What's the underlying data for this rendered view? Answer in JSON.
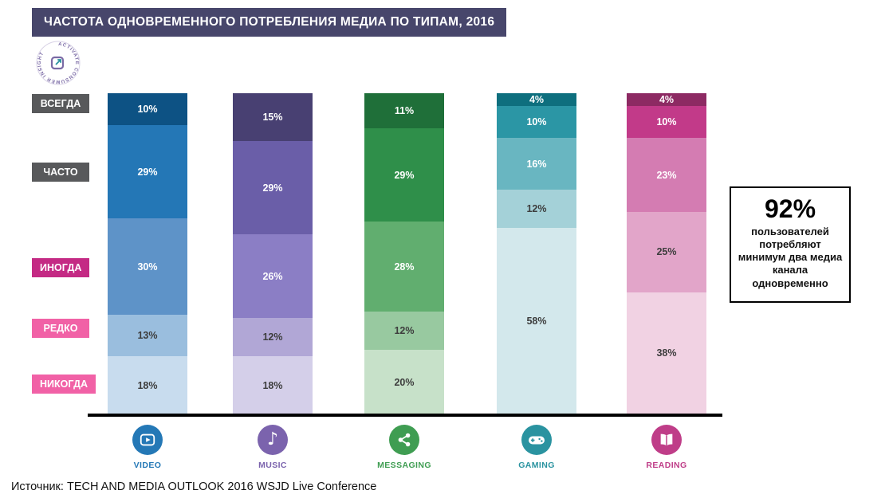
{
  "title": "ЧАСТОТА ОДНОВРЕМЕННОГО ПОТРЕБЛЕНИЯ МЕДИА ПО ТИПАМ, 2016",
  "logo": {
    "text": "ACTIVATE CONSUMER INSIGHT"
  },
  "row_labels": [
    {
      "label": "ВСЕГДА",
      "color": "#58595b"
    },
    {
      "label": "ЧАСТО",
      "color": "#58595b"
    },
    {
      "label": "ИНОГДА",
      "color": "#c42a84"
    },
    {
      "label": "РЕДКО",
      "color": "#f161a6"
    },
    {
      "label": "НИКОГДА",
      "color": "#f161a6"
    }
  ],
  "chart_data": {
    "type": "bar",
    "stacked": true,
    "unit": "%",
    "title": "ЧАСТОТА ОДНОВРЕМЕННОГО ПОТРЕБЛЕНИЯ МЕДИА ПО ТИПАМ, 2016",
    "row_labels": [
      "ВСЕГДА",
      "ЧАСТО",
      "ИНОГДА",
      "РЕДКО",
      "НИКОГДА"
    ],
    "categories": [
      "VIDEO",
      "MUSIC",
      "MESSAGING",
      "GAMING",
      "READING"
    ],
    "ylim": [
      0,
      100
    ],
    "series": [
      {
        "name": "VIDEO",
        "icon": "video-icon",
        "accent": "#2478b6",
        "values": [
          10,
          29,
          30,
          13,
          18
        ],
        "colors": [
          "#0d5284",
          "#2477b6",
          "#5e93c8",
          "#9abede",
          "#c8dcee"
        ]
      },
      {
        "name": "MUSIC",
        "icon": "music-icon",
        "accent": "#7b63ad",
        "values": [
          15,
          29,
          26,
          12,
          18
        ],
        "colors": [
          "#484072",
          "#6a5ea8",
          "#8b7ec5",
          "#b1a7d6",
          "#d4cfe9"
        ]
      },
      {
        "name": "MESSAGING",
        "icon": "share-icon",
        "accent": "#3f9d52",
        "values": [
          11,
          29,
          28,
          12,
          20
        ],
        "colors": [
          "#1f6f39",
          "#2f8f4a",
          "#61ae6f",
          "#98c9a0",
          "#c7e1c9"
        ]
      },
      {
        "name": "GAMING",
        "icon": "gamepad-icon",
        "accent": "#2a93a0",
        "values": [
          4,
          10,
          16,
          12,
          58
        ],
        "colors": [
          "#0e6f7e",
          "#2b96a5",
          "#69b6c1",
          "#a4d1d8",
          "#d3e8ec"
        ]
      },
      {
        "name": "READING",
        "icon": "open-book-icon",
        "accent": "#bf3d88",
        "values": [
          4,
          10,
          23,
          25,
          38
        ],
        "colors": [
          "#8d2a63",
          "#c23a89",
          "#d47cb2",
          "#e2a5c9",
          "#f1d2e3"
        ]
      }
    ]
  },
  "callout": {
    "value": "92%",
    "text": "пользователей потребляют минимум два медиа канала одновременно"
  },
  "source": "Источник: TECH AND MEDIA OUTLOOK 2016 WSJD Live Conference"
}
